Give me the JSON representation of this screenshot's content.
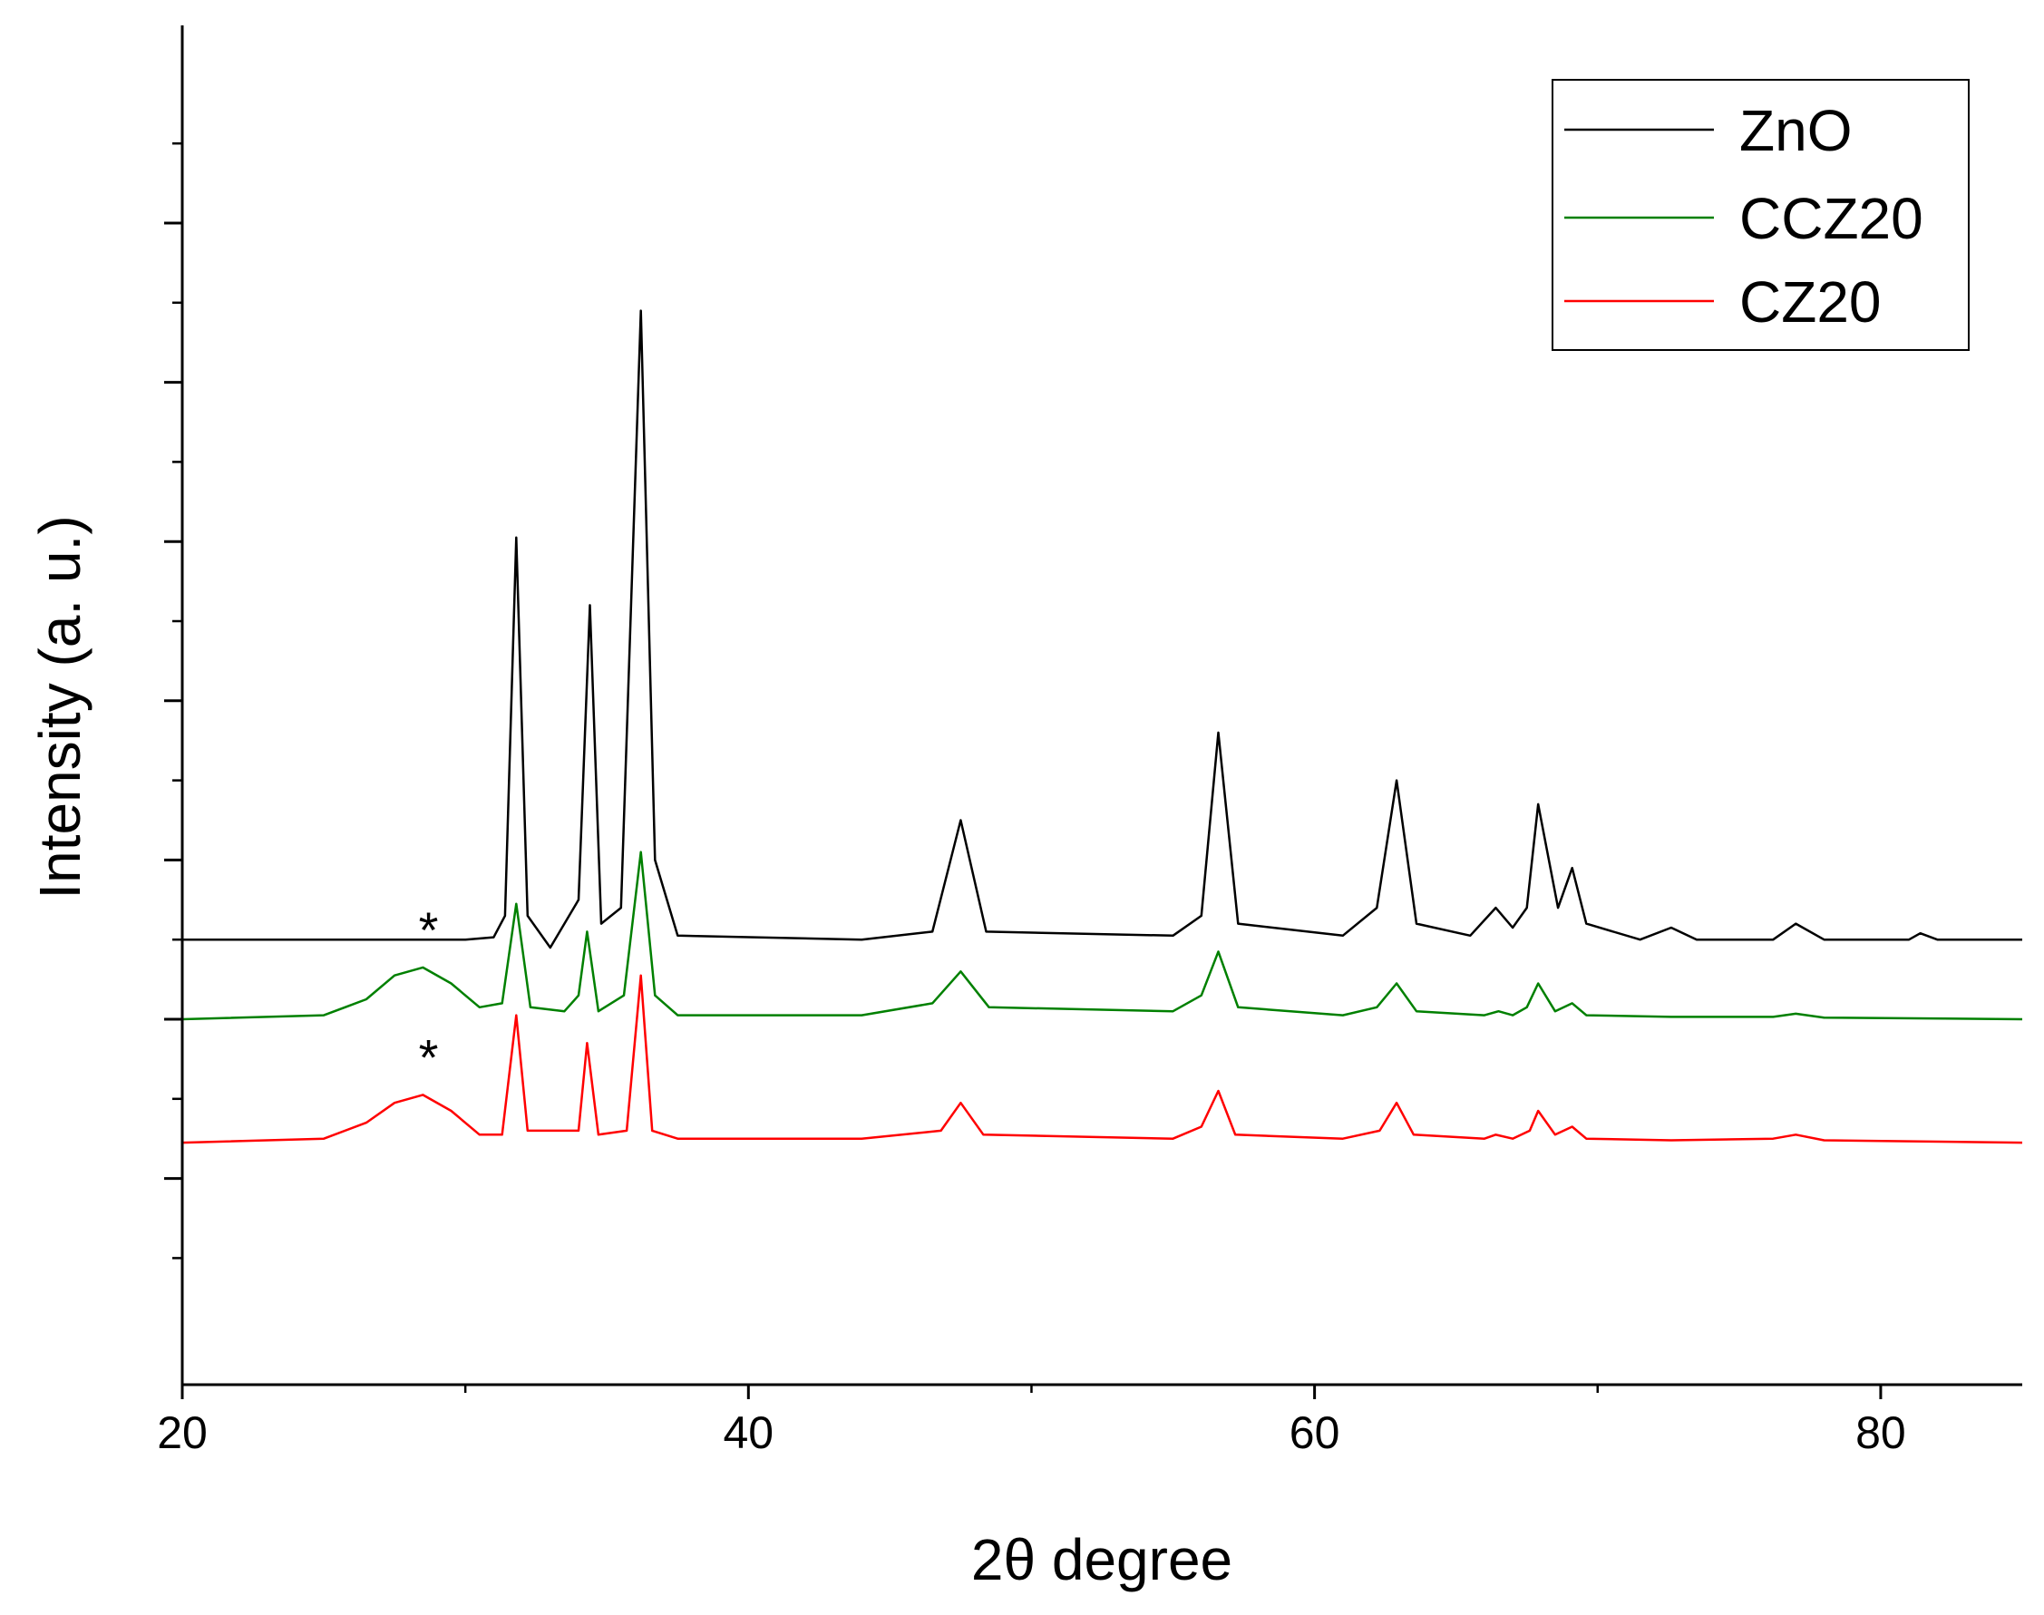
{
  "chart_data": {
    "type": "line",
    "xlabel": "2θ degree",
    "ylabel": "Intensity (a. u.)",
    "xlim": [
      20,
      85
    ],
    "x_ticks": [
      20,
      40,
      60,
      80
    ],
    "x_tick_labels": [
      "20",
      "40",
      "60",
      "80"
    ],
    "y_ticks_labeled": false,
    "grid": false,
    "legend_position": "top-right",
    "series": [
      {
        "name": "ZnO",
        "color": "#000000",
        "baseline": 1.0,
        "points": [
          [
            20,
            1.0
          ],
          [
            30,
            1.0
          ],
          [
            31.0,
            1.03
          ],
          [
            31.4,
            1.3
          ],
          [
            31.8,
            6.05
          ],
          [
            32.2,
            1.3
          ],
          [
            33.0,
            0.9
          ],
          [
            34.0,
            1.5
          ],
          [
            34.4,
            5.2
          ],
          [
            34.8,
            1.2
          ],
          [
            35.5,
            1.4
          ],
          [
            36.2,
            8.9
          ],
          [
            36.7,
            2.0
          ],
          [
            37.5,
            1.05
          ],
          [
            44,
            1.0
          ],
          [
            46.5,
            1.1
          ],
          [
            47.5,
            2.5
          ],
          [
            48.4,
            1.1
          ],
          [
            55,
            1.05
          ],
          [
            56.0,
            1.3
          ],
          [
            56.6,
            3.6
          ],
          [
            57.3,
            1.2
          ],
          [
            61,
            1.05
          ],
          [
            62.2,
            1.4
          ],
          [
            62.9,
            3.0
          ],
          [
            63.6,
            1.2
          ],
          [
            65.5,
            1.05
          ],
          [
            66.4,
            1.4
          ],
          [
            67.0,
            1.15
          ],
          [
            67.5,
            1.4
          ],
          [
            67.9,
            2.7
          ],
          [
            68.6,
            1.4
          ],
          [
            69.1,
            1.9
          ],
          [
            69.6,
            1.2
          ],
          [
            71.5,
            1.0
          ],
          [
            72.6,
            1.15
          ],
          [
            73.5,
            1.0
          ],
          [
            76.2,
            1.0
          ],
          [
            77.0,
            1.2
          ],
          [
            78,
            1.0
          ],
          [
            81.0,
            1.0
          ],
          [
            81.4,
            1.08
          ],
          [
            82,
            1.0
          ],
          [
            85,
            1.0
          ]
        ]
      },
      {
        "name": "CCZ20",
        "color": "#008000",
        "baseline": 0.0,
        "points": [
          [
            20,
            0.0
          ],
          [
            25.0,
            0.05
          ],
          [
            26.5,
            0.25
          ],
          [
            27.5,
            0.55
          ],
          [
            28.5,
            0.65
          ],
          [
            29.5,
            0.45
          ],
          [
            30.5,
            0.15
          ],
          [
            31.3,
            0.2
          ],
          [
            31.8,
            1.45
          ],
          [
            32.3,
            0.15
          ],
          [
            33.5,
            0.1
          ],
          [
            34.0,
            0.3
          ],
          [
            34.3,
            1.1
          ],
          [
            34.7,
            0.1
          ],
          [
            35.6,
            0.3
          ],
          [
            36.2,
            2.1
          ],
          [
            36.7,
            0.3
          ],
          [
            37.5,
            0.05
          ],
          [
            44,
            0.05
          ],
          [
            46.5,
            0.2
          ],
          [
            47.5,
            0.6
          ],
          [
            48.5,
            0.15
          ],
          [
            55,
            0.1
          ],
          [
            56.0,
            0.3
          ],
          [
            56.6,
            0.85
          ],
          [
            57.3,
            0.15
          ],
          [
            61,
            0.05
          ],
          [
            62.2,
            0.15
          ],
          [
            62.9,
            0.45
          ],
          [
            63.6,
            0.1
          ],
          [
            66.0,
            0.05
          ],
          [
            66.5,
            0.1
          ],
          [
            67.0,
            0.05
          ],
          [
            67.5,
            0.15
          ],
          [
            67.9,
            0.45
          ],
          [
            68.5,
            0.1
          ],
          [
            69.1,
            0.2
          ],
          [
            69.6,
            0.05
          ],
          [
            72.6,
            0.03
          ],
          [
            76.2,
            0.03
          ],
          [
            77.0,
            0.07
          ],
          [
            78,
            0.02
          ],
          [
            85,
            0.0
          ]
        ]
      },
      {
        "name": "CZ20",
        "color": "#ff0000",
        "baseline": -1.55,
        "points": [
          [
            20,
            -1.55
          ],
          [
            25.0,
            -1.5
          ],
          [
            26.5,
            -1.3
          ],
          [
            27.5,
            -1.05
          ],
          [
            28.5,
            -0.95
          ],
          [
            29.5,
            -1.15
          ],
          [
            30.5,
            -1.45
          ],
          [
            31.3,
            -1.45
          ],
          [
            31.8,
            0.05
          ],
          [
            32.2,
            -1.4
          ],
          [
            33.5,
            -1.4
          ],
          [
            34.0,
            -1.4
          ],
          [
            34.3,
            -0.3
          ],
          [
            34.7,
            -1.45
          ],
          [
            35.7,
            -1.4
          ],
          [
            36.2,
            0.55
          ],
          [
            36.6,
            -1.4
          ],
          [
            37.5,
            -1.5
          ],
          [
            44,
            -1.5
          ],
          [
            46.8,
            -1.4
          ],
          [
            47.5,
            -1.05
          ],
          [
            48.3,
            -1.45
          ],
          [
            55,
            -1.5
          ],
          [
            56.0,
            -1.35
          ],
          [
            56.6,
            -0.9
          ],
          [
            57.2,
            -1.45
          ],
          [
            61,
            -1.5
          ],
          [
            62.3,
            -1.4
          ],
          [
            62.9,
            -1.05
          ],
          [
            63.5,
            -1.45
          ],
          [
            66.0,
            -1.5
          ],
          [
            66.4,
            -1.45
          ],
          [
            67.0,
            -1.5
          ],
          [
            67.6,
            -1.4
          ],
          [
            67.9,
            -1.15
          ],
          [
            68.5,
            -1.45
          ],
          [
            69.1,
            -1.35
          ],
          [
            69.6,
            -1.5
          ],
          [
            72.6,
            -1.52
          ],
          [
            76.2,
            -1.5
          ],
          [
            77.0,
            -1.45
          ],
          [
            78,
            -1.52
          ],
          [
            85,
            -1.55
          ]
        ]
      }
    ],
    "annotations": [
      {
        "text": "*",
        "x": 28.7,
        "series": "CCZ20"
      },
      {
        "text": "*",
        "x": 28.7,
        "series": "CZ20"
      }
    ]
  }
}
